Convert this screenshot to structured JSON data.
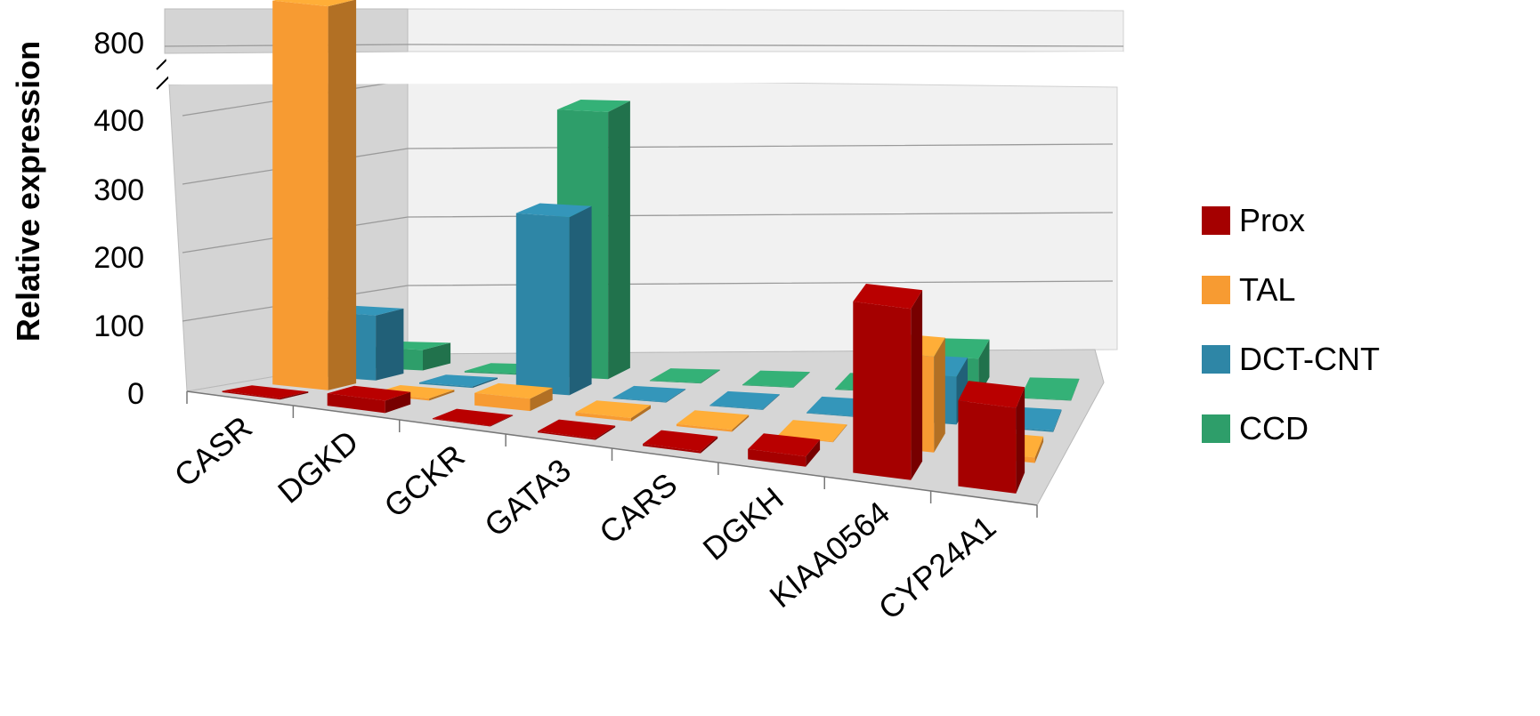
{
  "chart_data": {
    "type": "bar",
    "subtype": "3d-clustered-column",
    "title": "",
    "ylabel": "Relative expression",
    "xlabel": "",
    "categories": [
      "CASR",
      "DGKD",
      "GCKR",
      "GATA3",
      "CARS",
      "DGKH",
      "KIAA0564",
      "CYP24A1"
    ],
    "series": [
      {
        "name": "Prox",
        "color": "#A50000",
        "values": [
          2,
          18,
          1,
          2,
          3,
          15,
          250,
          125
        ]
      },
      {
        "name": "TAL",
        "color": "#F79B32",
        "values": [
          830,
          3,
          18,
          5,
          3,
          1,
          140,
          8
        ]
      },
      {
        "name": "DCT-CNT",
        "color": "#2E86A6",
        "values": [
          95,
          2,
          260,
          1,
          1,
          1,
          70,
          2
        ]
      },
      {
        "name": "CCD",
        "color": "#2E9E6A",
        "values": [
          30,
          2,
          390,
          1,
          1,
          1,
          55,
          1
        ]
      }
    ],
    "y_ticks": [
      "0",
      "100",
      "200",
      "300",
      "400",
      "800"
    ],
    "ylim": [
      0,
      850
    ],
    "axis_break": {
      "from": 460,
      "to": 780
    },
    "grid": true,
    "legend_position": "right"
  }
}
